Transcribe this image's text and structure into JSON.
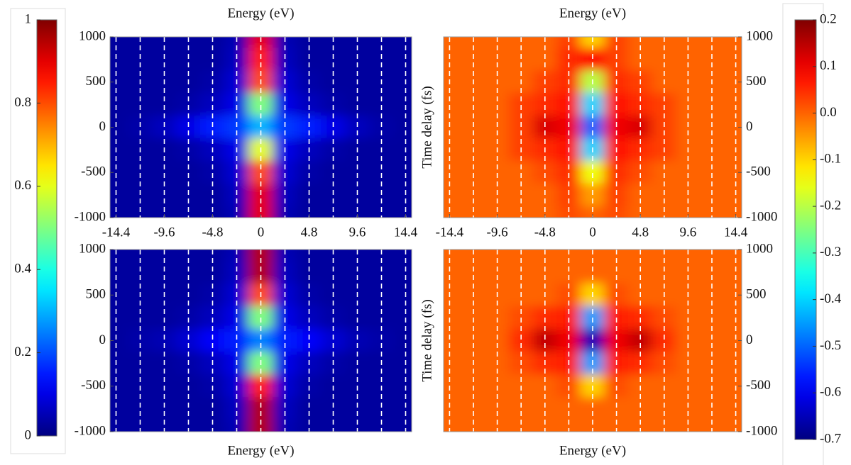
{
  "chart_data": [
    {
      "type": "heatmap",
      "colormap": "jet",
      "grid": "dashed",
      "xlabel": "Energy (eV)",
      "x": [
        -14.4,
        -12,
        -9.6,
        -7.2,
        -4.8,
        -2.4,
        0,
        2.4,
        4.8,
        7.2,
        9.6,
        12,
        14.4
      ],
      "y": [
        1000,
        750,
        500,
        250,
        0,
        -250,
        -500,
        -750,
        -1000
      ],
      "xlim": [
        -15,
        15
      ],
      "ylim": [
        -1000,
        1000
      ],
      "zlim": [
        0,
        1
      ],
      "xticks": [
        -14.4,
        -9.6,
        -4.8,
        0,
        4.8,
        9.6,
        14.4
      ],
      "yticks": [
        1000,
        500,
        0,
        -500,
        -1000
      ],
      "z": [
        [
          0.03,
          0.03,
          0.03,
          0.03,
          0.03,
          0.05,
          0.9,
          0.05,
          0.03,
          0.03,
          0.03,
          0.03,
          0.03
        ],
        [
          0.03,
          0.03,
          0.03,
          0.03,
          0.03,
          0.06,
          0.85,
          0.06,
          0.03,
          0.03,
          0.03,
          0.03,
          0.03
        ],
        [
          0.03,
          0.03,
          0.03,
          0.03,
          0.04,
          0.08,
          0.8,
          0.08,
          0.04,
          0.03,
          0.03,
          0.03,
          0.03
        ],
        [
          0.03,
          0.03,
          0.03,
          0.04,
          0.06,
          0.1,
          0.5,
          0.1,
          0.06,
          0.04,
          0.03,
          0.03,
          0.03
        ],
        [
          0.03,
          0.04,
          0.06,
          0.1,
          0.15,
          0.18,
          0.3,
          0.18,
          0.15,
          0.1,
          0.06,
          0.04,
          0.03
        ],
        [
          0.03,
          0.03,
          0.03,
          0.04,
          0.06,
          0.1,
          0.6,
          0.1,
          0.06,
          0.04,
          0.03,
          0.03,
          0.03
        ],
        [
          0.03,
          0.03,
          0.03,
          0.03,
          0.04,
          0.08,
          0.8,
          0.08,
          0.04,
          0.03,
          0.03,
          0.03,
          0.03
        ],
        [
          0.03,
          0.03,
          0.03,
          0.03,
          0.03,
          0.06,
          0.9,
          0.06,
          0.03,
          0.03,
          0.03,
          0.03,
          0.03
        ],
        [
          0.03,
          0.03,
          0.03,
          0.03,
          0.03,
          0.05,
          0.9,
          0.05,
          0.03,
          0.03,
          0.03,
          0.03,
          0.03
        ]
      ]
    },
    {
      "type": "heatmap",
      "colormap": "jet",
      "grid": "dashed",
      "xlabel": "Energy (eV)",
      "ylabel": "Time delay (fs)",
      "x": [
        -14.4,
        -12,
        -9.6,
        -7.2,
        -4.8,
        -2.4,
        0,
        2.4,
        4.8,
        7.2,
        9.6,
        12,
        14.4
      ],
      "y": [
        1000,
        750,
        500,
        250,
        0,
        -250,
        -500,
        -750,
        -1000
      ],
      "xlim": [
        -15,
        15
      ],
      "ylim": [
        -1000,
        1000
      ],
      "zlim": [
        -0.7,
        0.2
      ],
      "xticks": [
        -14.4,
        -9.6,
        -4.8,
        0,
        4.8,
        9.6,
        14.4
      ],
      "yticks": [
        1000,
        500,
        0,
        -500,
        -1000
      ],
      "z": [
        [
          0,
          0,
          0,
          0,
          0,
          0.03,
          -0.1,
          0.03,
          0,
          0,
          0,
          0,
          0
        ],
        [
          0,
          0,
          0,
          0,
          0,
          0.05,
          0.08,
          0.03,
          0,
          0,
          0,
          0,
          0
        ],
        [
          0,
          0,
          0,
          0,
          0.03,
          0.05,
          -0.2,
          0.05,
          0.03,
          0,
          0,
          0,
          0
        ],
        [
          0,
          0,
          0,
          0.03,
          0.05,
          0.08,
          -0.4,
          0.08,
          0.05,
          0.03,
          0,
          0,
          0
        ],
        [
          0,
          0,
          0,
          0.03,
          0.12,
          0.1,
          -0.5,
          0.1,
          0.12,
          0.03,
          0,
          0,
          0
        ],
        [
          0,
          0,
          0,
          0.03,
          0.05,
          0.08,
          -0.4,
          0.08,
          0.05,
          0.03,
          0,
          0,
          0
        ],
        [
          0,
          0,
          0,
          0,
          0.02,
          0.05,
          -0.15,
          0.05,
          0.02,
          0,
          0,
          0,
          0
        ],
        [
          0,
          0,
          0,
          0,
          0,
          0.03,
          -0.05,
          0.03,
          0,
          0,
          0,
          0,
          0
        ],
        [
          0,
          0,
          0,
          0,
          0,
          0.02,
          0,
          0.02,
          0,
          0,
          0,
          0,
          0
        ]
      ]
    },
    {
      "type": "heatmap",
      "colormap": "jet",
      "grid": "dashed",
      "xlabel": "Energy (eV)",
      "x": [
        -14.4,
        -12,
        -9.6,
        -7.2,
        -4.8,
        -2.4,
        0,
        2.4,
        4.8,
        7.2,
        9.6,
        12,
        14.4
      ],
      "y": [
        1000,
        750,
        500,
        250,
        0,
        -250,
        -500,
        -750,
        -1000
      ],
      "xlim": [
        -15,
        15
      ],
      "ylim": [
        -1000,
        1000
      ],
      "zlim": [
        0,
        1
      ],
      "yticks": [
        1000,
        500,
        0,
        -500,
        -1000
      ],
      "z": [
        [
          0.03,
          0.03,
          0.03,
          0.03,
          0.03,
          0.05,
          0.95,
          0.05,
          0.03,
          0.03,
          0.03,
          0.03,
          0.03
        ],
        [
          0.03,
          0.03,
          0.03,
          0.03,
          0.03,
          0.06,
          0.95,
          0.06,
          0.03,
          0.03,
          0.03,
          0.03,
          0.03
        ],
        [
          0.03,
          0.03,
          0.03,
          0.03,
          0.04,
          0.08,
          0.8,
          0.08,
          0.04,
          0.03,
          0.03,
          0.03,
          0.03
        ],
        [
          0.03,
          0.03,
          0.03,
          0.04,
          0.06,
          0.1,
          0.5,
          0.1,
          0.06,
          0.04,
          0.03,
          0.03,
          0.03
        ],
        [
          0.03,
          0.04,
          0.05,
          0.08,
          0.12,
          0.15,
          0.25,
          0.15,
          0.12,
          0.08,
          0.05,
          0.04,
          0.03
        ],
        [
          0.03,
          0.03,
          0.03,
          0.04,
          0.06,
          0.1,
          0.5,
          0.1,
          0.06,
          0.04,
          0.03,
          0.03,
          0.03
        ],
        [
          0.03,
          0.03,
          0.03,
          0.03,
          0.04,
          0.08,
          0.85,
          0.08,
          0.04,
          0.03,
          0.03,
          0.03,
          0.03
        ],
        [
          0.03,
          0.03,
          0.03,
          0.03,
          0.03,
          0.06,
          0.95,
          0.06,
          0.03,
          0.03,
          0.03,
          0.03,
          0.03
        ],
        [
          0.03,
          0.03,
          0.03,
          0.03,
          0.03,
          0.05,
          0.95,
          0.05,
          0.03,
          0.03,
          0.03,
          0.03,
          0.03
        ]
      ]
    },
    {
      "type": "heatmap",
      "colormap": "jet",
      "grid": "dashed",
      "xlabel": "Energy (eV)",
      "ylabel": "Time delay (fs)",
      "x": [
        -14.4,
        -12,
        -9.6,
        -7.2,
        -4.8,
        -2.4,
        0,
        2.4,
        4.8,
        7.2,
        9.6,
        12,
        14.4
      ],
      "y": [
        1000,
        750,
        500,
        250,
        0,
        -250,
        -500,
        -750,
        -1000
      ],
      "xlim": [
        -15,
        15
      ],
      "ylim": [
        -1000,
        1000
      ],
      "zlim": [
        -0.7,
        0.2
      ],
      "yticks": [
        1000,
        500,
        0,
        -500,
        -1000
      ],
      "z": [
        [
          0,
          0,
          0,
          0,
          0,
          0,
          0,
          0,
          0,
          0,
          0,
          0,
          0
        ],
        [
          0,
          0,
          0,
          0,
          0,
          0,
          0,
          0,
          0,
          0,
          0,
          0,
          0
        ],
        [
          0,
          0,
          0,
          0,
          0,
          0.02,
          -0.1,
          0.02,
          0,
          0,
          0,
          0,
          0
        ],
        [
          0,
          0,
          0,
          0.02,
          0.05,
          0.06,
          -0.45,
          0.06,
          0.05,
          0.02,
          0,
          0,
          0
        ],
        [
          0,
          0,
          0,
          0.05,
          0.14,
          0.1,
          -0.65,
          0.1,
          0.14,
          0.05,
          0,
          0,
          0
        ],
        [
          0,
          0,
          0,
          0.02,
          0.05,
          0.06,
          -0.45,
          0.06,
          0.05,
          0.02,
          0,
          0,
          0
        ],
        [
          0,
          0,
          0,
          0,
          0,
          0.02,
          -0.1,
          0.02,
          0,
          0,
          0,
          0,
          0
        ],
        [
          0,
          0,
          0,
          0,
          0,
          0,
          0,
          0,
          0,
          0,
          0,
          0,
          0
        ],
        [
          0,
          0,
          0,
          0,
          0,
          0,
          0,
          0,
          0,
          0,
          0,
          0,
          0
        ]
      ]
    },
    {
      "type": "colorbar",
      "colormap": "jet",
      "zlim": [
        0,
        1
      ],
      "zticks": [
        0,
        0.2,
        0.4,
        0.6,
        0.8,
        1
      ]
    },
    {
      "type": "colorbar",
      "colormap": "jet",
      "zlim": [
        -0.7,
        0.2
      ],
      "zticks": [
        -0.7,
        -0.6,
        -0.5,
        -0.4,
        -0.3,
        -0.2,
        -0.1,
        {
          "value": 0,
          "label": "0.0"
        },
        0.1,
        0.2
      ]
    }
  ]
}
